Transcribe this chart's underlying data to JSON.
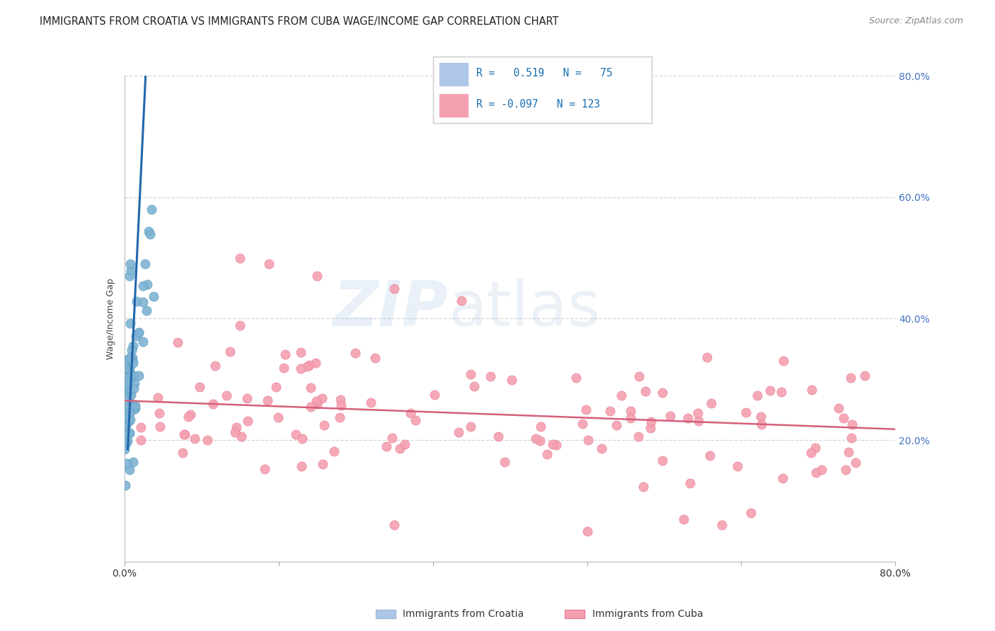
{
  "title": "IMMIGRANTS FROM CROATIA VS IMMIGRANTS FROM CUBA WAGE/INCOME GAP CORRELATION CHART",
  "source": "Source: ZipAtlas.com",
  "ylabel": "Wage/Income Gap",
  "watermark_zip": "ZIP",
  "watermark_atlas": "atlas",
  "croatia_label": "Immigrants from Croatia",
  "cuba_label": "Immigrants from Cuba",
  "croatia_R": 0.519,
  "croatia_N": 75,
  "cuba_R": -0.097,
  "cuba_N": 123,
  "croatia_dot_color": "#7fb3d3",
  "croatia_dot_edge": "#5a9fc0",
  "croatia_line_color": "#2166ac",
  "cuba_dot_color": "#f4a0b0",
  "cuba_dot_edge": "#e8809a",
  "cuba_line_color": "#d45f7a",
  "xlim": [
    0.0,
    0.8
  ],
  "ylim": [
    0.0,
    0.8
  ],
  "ytick_vals": [
    0.2,
    0.4,
    0.6,
    0.8
  ],
  "ytick_labels": [
    "20.0%",
    "40.0%",
    "60.0%",
    "80.0%"
  ],
  "background_color": "#ffffff",
  "grid_color": "#cccccc",
  "legend_R_color": "#1a6faf",
  "legend_N_color": "#1a6faf",
  "title_fontsize": 10.5,
  "source_fontsize": 9,
  "axis_label_fontsize": 9,
  "tick_fontsize": 10,
  "right_tick_color": "#4472c4"
}
